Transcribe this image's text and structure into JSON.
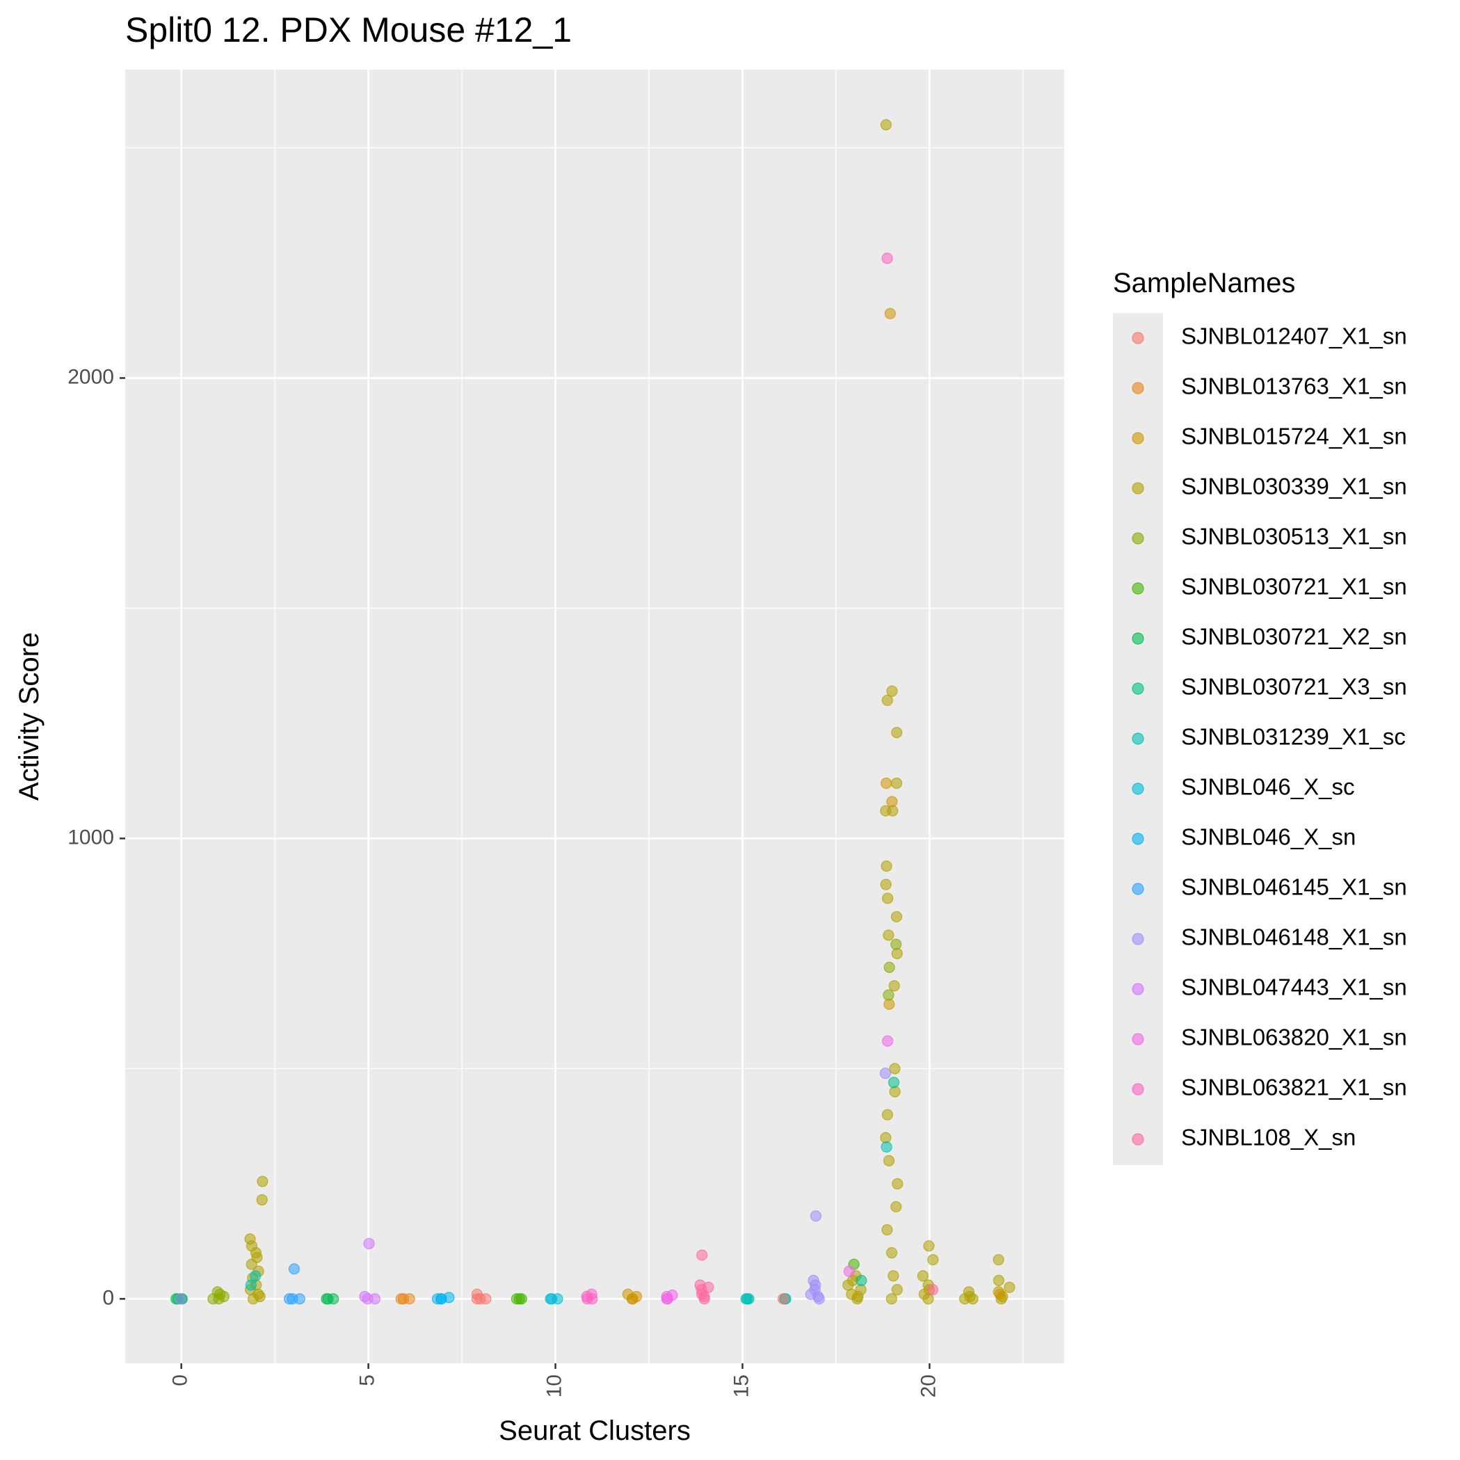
{
  "chart_data": {
    "type": "scatter",
    "title": "Split0 12. PDX Mouse #12_1",
    "xlabel": "Seurat Clusters",
    "ylabel": "Activity Score",
    "xlim": [
      -1.5,
      23.6
    ],
    "ylim": [
      -140,
      2670
    ],
    "x_ticks": [
      0,
      5,
      10,
      15,
      20
    ],
    "x_tick_labels": [
      "0",
      "5",
      "10",
      "15",
      "20"
    ],
    "y_ticks": [
      0,
      1000,
      2000
    ],
    "y_tick_labels": [
      "0",
      "1000",
      "2000"
    ],
    "grid": true,
    "legend_position": "right",
    "legend": {
      "title": "SampleNames",
      "entries": [
        {
          "name": "SJNBL012407_X1_sn",
          "color": "#F8766D"
        },
        {
          "name": "SJNBL013763_X1_sn",
          "color": "#E7861B"
        },
        {
          "name": "SJNBL015724_X1_sn",
          "color": "#D09400"
        },
        {
          "name": "SJNBL030339_X1_sn",
          "color": "#B2A100"
        },
        {
          "name": "SJNBL030513_X1_sn",
          "color": "#89AC00"
        },
        {
          "name": "SJNBL030721_X1_sn",
          "color": "#45B500"
        },
        {
          "name": "SJNBL030721_X2_sn",
          "color": "#00BC51"
        },
        {
          "name": "SJNBL030721_X3_sn",
          "color": "#00C087"
        },
        {
          "name": "SJNBL031239_X1_sc",
          "color": "#00C0B2"
        },
        {
          "name": "SJNBL046_X_sc",
          "color": "#00BCD6"
        },
        {
          "name": "SJNBL046_X_sn",
          "color": "#00B3F2"
        },
        {
          "name": "SJNBL046145_X1_sn",
          "color": "#29A3FF"
        },
        {
          "name": "SJNBL046148_X1_sn",
          "color": "#9C8DFF"
        },
        {
          "name": "SJNBL047443_X1_sn",
          "color": "#D277FF"
        },
        {
          "name": "SJNBL063820_X1_sn",
          "color": "#F166E8"
        },
        {
          "name": "SJNBL063821_X1_sn",
          "color": "#FF61C7"
        },
        {
          "name": "SJNBL108_X_sn",
          "color": "#FF689E"
        }
      ]
    },
    "series": [
      {
        "cluster": 0,
        "sample": "SJNBL030721_X2_sn",
        "values": [
          0,
          0,
          0,
          0
        ]
      },
      {
        "cluster": 0,
        "sample": "SJNBL046148_X1_sn",
        "values": [
          0
        ]
      },
      {
        "cluster": 1,
        "sample": "SJNBL030513_X1_sn",
        "values": [
          0,
          0,
          5,
          10,
          15
        ]
      },
      {
        "cluster": 2,
        "sample": "SJNBL030339_X1_sn",
        "values": [
          0,
          5,
          10,
          20,
          30,
          45,
          60,
          75,
          90,
          100,
          115,
          130,
          215,
          255
        ]
      },
      {
        "cluster": 2,
        "sample": "SJNBL031239_X1_sc",
        "values": [
          30,
          50
        ]
      },
      {
        "cluster": 3,
        "sample": "SJNBL046145_X1_sn",
        "values": [
          0,
          0,
          0,
          65
        ]
      },
      {
        "cluster": 4,
        "sample": "SJNBL030721_X2_sn",
        "values": [
          0,
          0,
          0
        ]
      },
      {
        "cluster": 5,
        "sample": "SJNBL047443_X1_sn",
        "values": [
          0,
          0,
          5,
          120
        ]
      },
      {
        "cluster": 6,
        "sample": "SJNBL013763_X1_sn",
        "values": [
          0,
          0,
          0
        ]
      },
      {
        "cluster": 7,
        "sample": "SJNBL046_X_sn",
        "values": [
          0,
          0,
          0,
          3
        ]
      },
      {
        "cluster": 8,
        "sample": "SJNBL012407_X1_sn",
        "values": [
          0,
          0,
          0,
          10
        ]
      },
      {
        "cluster": 9,
        "sample": "SJNBL030721_X1_sn",
        "values": [
          0,
          0,
          0
        ]
      },
      {
        "cluster": 10,
        "sample": "SJNBL046_X_sc",
        "values": [
          0,
          0,
          0
        ]
      },
      {
        "cluster": 11,
        "sample": "SJNBL063821_X1_sn",
        "values": [
          0,
          0,
          5,
          10
        ]
      },
      {
        "cluster": 12,
        "sample": "SJNBL015724_X1_sn",
        "values": [
          0,
          0,
          5,
          10
        ]
      },
      {
        "cluster": 13,
        "sample": "SJNBL063820_X1_sn",
        "values": [
          0,
          0,
          5,
          8
        ]
      },
      {
        "cluster": 14,
        "sample": "SJNBL108_X_sn",
        "values": [
          0,
          5,
          10,
          20,
          25,
          30,
          95
        ]
      },
      {
        "cluster": 15,
        "sample": "SJNBL031239_X1_sc",
        "values": [
          0,
          0,
          0
        ]
      },
      {
        "cluster": 16,
        "sample": "SJNBL031239_X1_sc",
        "values": [
          0,
          0
        ]
      },
      {
        "cluster": 16,
        "sample": "SJNBL012407_X1_sn",
        "values": [
          0
        ]
      },
      {
        "cluster": 17,
        "sample": "SJNBL046148_X1_sn",
        "values": [
          0,
          5,
          10,
          20,
          30,
          40,
          180
        ]
      },
      {
        "cluster": 18,
        "sample": "SJNBL030339_X1_sn",
        "values": [
          0,
          5,
          10,
          20,
          30,
          40,
          50
        ]
      },
      {
        "cluster": 18,
        "sample": "SJNBL030721_X1_sn",
        "values": [
          75
        ]
      },
      {
        "cluster": 18,
        "sample": "SJNBL063820_X1_sn",
        "values": [
          60
        ]
      },
      {
        "cluster": 18,
        "sample": "SJNBL030721_X3_sn",
        "values": [
          40
        ]
      },
      {
        "cluster": 19,
        "sample": "SJNBL030339_X1_sn",
        "values": [
          0,
          20,
          50,
          100,
          150,
          200,
          250,
          300,
          350,
          400,
          450,
          500,
          680,
          750,
          790,
          830,
          870,
          900,
          940,
          1060,
          1060,
          1120,
          1230,
          1300,
          1320,
          2550
        ]
      },
      {
        "cluster": 19,
        "sample": "SJNBL015724_X1_sn",
        "values": [
          640,
          1080,
          1120,
          2140
        ]
      },
      {
        "cluster": 19,
        "sample": "SJNBL030513_X1_sn",
        "values": [
          660,
          720,
          770
        ]
      },
      {
        "cluster": 19,
        "sample": "SJNBL063821_X1_sn",
        "values": [
          2260
        ]
      },
      {
        "cluster": 19,
        "sample": "SJNBL063820_X1_sn",
        "values": [
          560
        ]
      },
      {
        "cluster": 19,
        "sample": "SJNBL046148_X1_sn",
        "values": [
          490
        ]
      },
      {
        "cluster": 19,
        "sample": "SJNBL030721_X3_sn",
        "values": [
          470
        ]
      },
      {
        "cluster": 19,
        "sample": "SJNBL031239_X1_sc",
        "values": [
          330
        ]
      },
      {
        "cluster": 20,
        "sample": "SJNBL030339_X1_sn",
        "values": [
          0,
          10,
          20,
          30,
          50,
          85,
          115
        ]
      },
      {
        "cluster": 20,
        "sample": "SJNBL108_X_sn",
        "values": [
          20
        ]
      },
      {
        "cluster": 21,
        "sample": "SJNBL030339_X1_sn",
        "values": [
          0,
          0,
          5,
          15
        ]
      },
      {
        "cluster": 22,
        "sample": "SJNBL030339_X1_sn",
        "values": [
          0,
          5,
          15,
          25,
          40,
          85
        ]
      },
      {
        "cluster": 22,
        "sample": "SJNBL015724_X1_sn",
        "values": [
          10
        ]
      }
    ]
  }
}
